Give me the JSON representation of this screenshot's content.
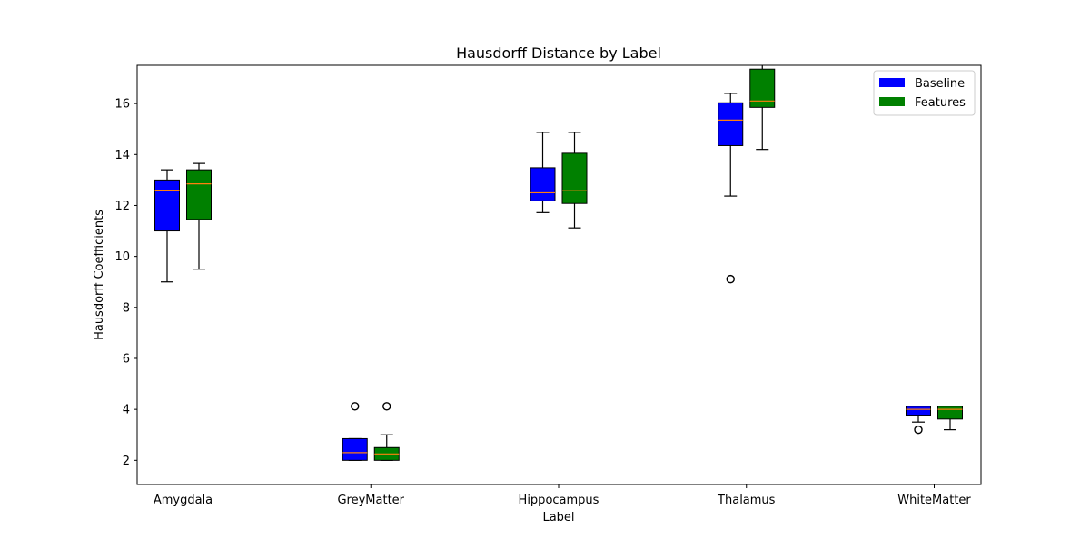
{
  "chart_data": {
    "type": "boxplot",
    "title": "Hausdorff Distance by Label",
    "xlabel": "Label",
    "ylabel": "Hausdorff Coefficients",
    "ylim": [
      1.05,
      17.5
    ],
    "yticks": [
      2,
      4,
      6,
      8,
      10,
      12,
      14,
      16
    ],
    "categories": [
      "Amygdala",
      "GreyMatter",
      "Hippocampus",
      "Thalamus",
      "WhiteMatter"
    ],
    "legend_position": "top-right",
    "series": [
      {
        "name": "Baseline",
        "color": "#0000ff",
        "boxes": [
          {
            "whisker_low": 9.0,
            "q1": 11.0,
            "median": 12.6,
            "q3": 13.0,
            "whisker_high": 13.4,
            "outliers": []
          },
          {
            "whisker_low": 2.0,
            "q1": 2.0,
            "median": 2.3,
            "q3": 2.85,
            "whisker_high": 2.85,
            "outliers": [
              4.12
            ]
          },
          {
            "whisker_low": 11.72,
            "q1": 12.18,
            "median": 12.5,
            "q3": 13.48,
            "whisker_high": 14.87,
            "outliers": []
          },
          {
            "whisker_low": 12.37,
            "q1": 14.35,
            "median": 15.35,
            "q3": 16.03,
            "whisker_high": 16.4,
            "outliers": [
              9.11
            ]
          },
          {
            "whisker_low": 3.5,
            "q1": 3.77,
            "median": 4.0,
            "q3": 4.12,
            "whisker_high": 4.12,
            "outliers": [
              3.2
            ]
          }
        ]
      },
      {
        "name": "Features",
        "color": "#008000",
        "boxes": [
          {
            "whisker_low": 9.5,
            "q1": 11.45,
            "median": 12.85,
            "q3": 13.4,
            "whisker_high": 13.65,
            "outliers": []
          },
          {
            "whisker_low": 2.0,
            "q1": 2.0,
            "median": 2.25,
            "q3": 2.5,
            "whisker_high": 3.0,
            "outliers": [
              4.12
            ]
          },
          {
            "whisker_low": 11.12,
            "q1": 12.08,
            "median": 12.58,
            "q3": 14.05,
            "whisker_high": 14.87,
            "outliers": []
          },
          {
            "whisker_low": 14.2,
            "q1": 15.85,
            "median": 16.1,
            "q3": 17.35,
            "whisker_high": 17.6,
            "outliers": []
          },
          {
            "whisker_low": 3.2,
            "q1": 3.62,
            "median": 4.0,
            "q3": 4.12,
            "whisker_high": 4.12,
            "outliers": []
          }
        ]
      }
    ],
    "median_color": "#ff7f0e"
  }
}
